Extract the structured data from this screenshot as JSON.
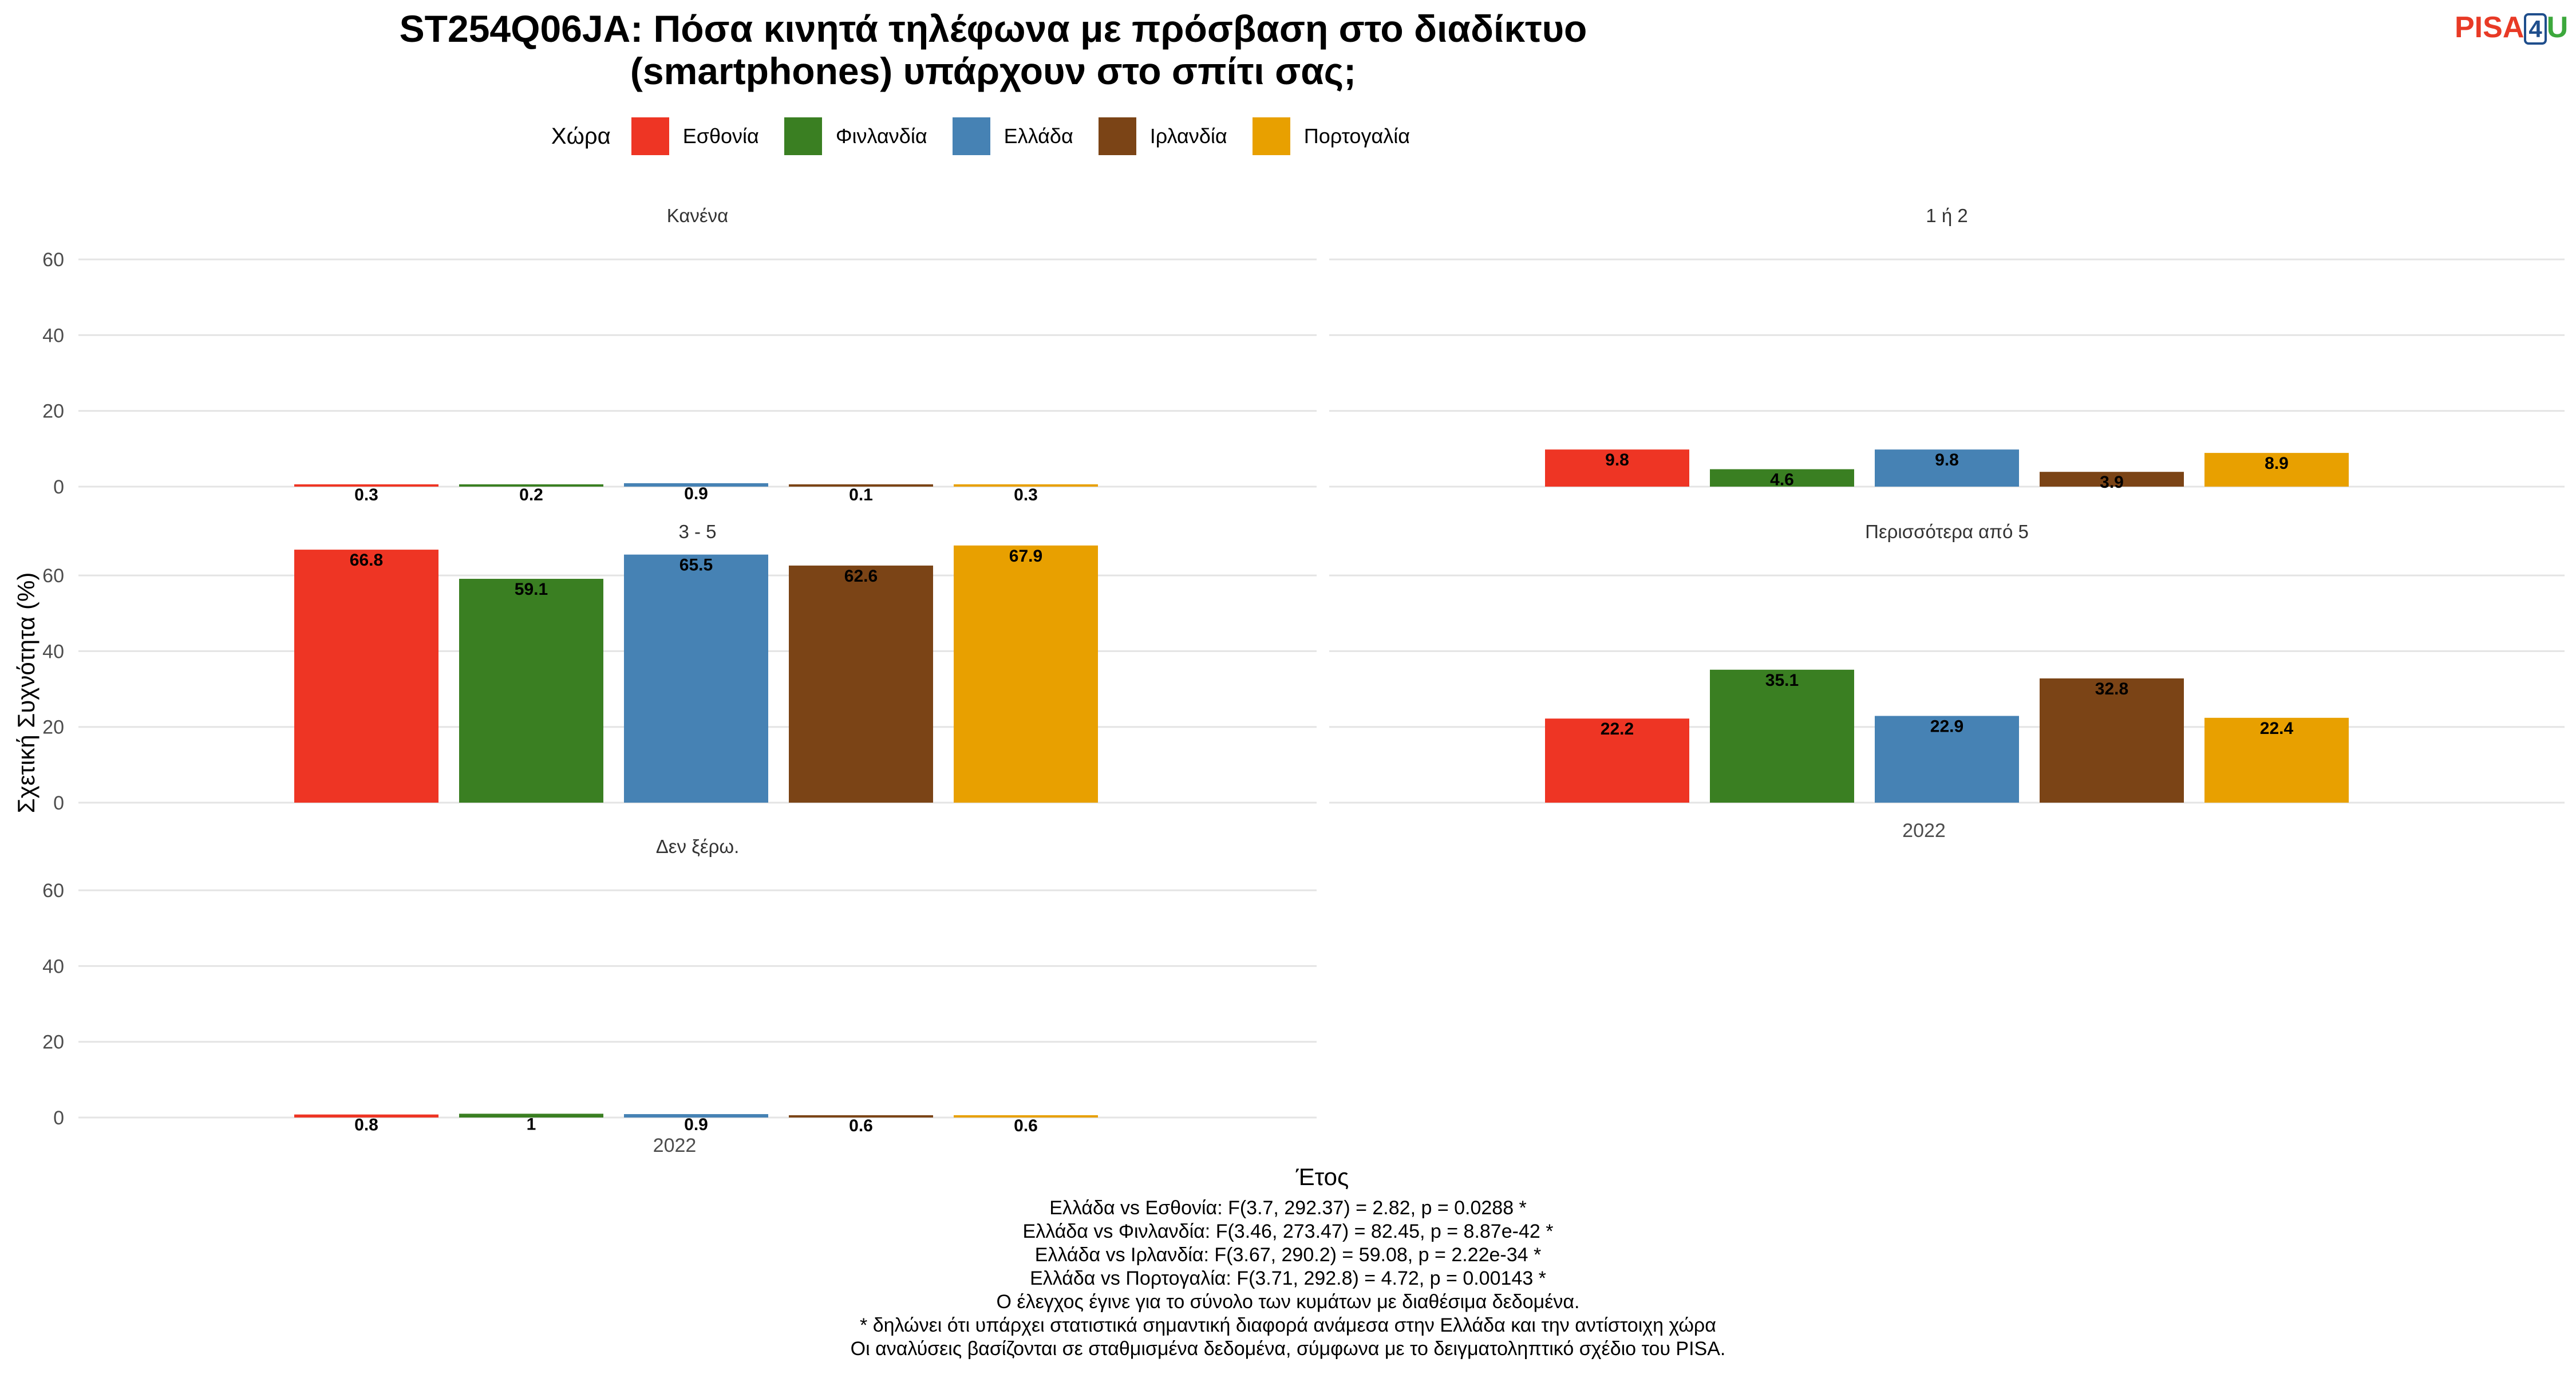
{
  "title_lines": [
    "ST254Q06JA: Πόσα κινητά τηλέφωνα με πρόσβαση στο διαδίκτυο",
    "(smartphones) υπάρχουν στο σπίτι σας;"
  ],
  "logo": {
    "part1": "PISA",
    "part2": "4",
    "part3": "U"
  },
  "legend": {
    "title": "Χώρα",
    "items": [
      {
        "label": "Εσθονία",
        "color": "#EE3524"
      },
      {
        "label": "Φινλανδία",
        "color": "#3A7F22"
      },
      {
        "label": "Ελλάδα",
        "color": "#4682B4"
      },
      {
        "label": "Ιρλανδία",
        "color": "#7B4416"
      },
      {
        "label": "Πορτογαλία",
        "color": "#E8A000"
      }
    ]
  },
  "chart_data": {
    "type": "bar",
    "ylabel": "Σχετική Συχνότητα (%)",
    "xlabel": "Έτος",
    "ylim": [
      0,
      65
    ],
    "yticks": [
      0,
      20,
      40,
      60
    ],
    "grid": true,
    "legend_position": "top",
    "categories": [
      "2022"
    ],
    "series_names": [
      "Εσθονία",
      "Φινλανδία",
      "Ελλάδα",
      "Ιρλανδία",
      "Πορτογαλία"
    ],
    "facets": [
      {
        "title": "Κανένα",
        "values": [
          0.3,
          0.2,
          0.9,
          0.1,
          0.3
        ],
        "labels": [
          "0.3",
          "0.2",
          "0.9",
          "0.1",
          "0.3"
        ]
      },
      {
        "title": "1 ή 2",
        "values": [
          9.8,
          4.6,
          9.8,
          3.9,
          8.9
        ],
        "labels": [
          "9.8",
          "4.6",
          "9.8",
          "3.9",
          "8.9"
        ]
      },
      {
        "title": "3 - 5",
        "values": [
          66.8,
          59.1,
          65.5,
          62.6,
          67.9
        ],
        "labels": [
          "66.8",
          "59.1",
          "65.5",
          "62.6",
          "67.9"
        ]
      },
      {
        "title": "Περισσότερα από 5",
        "values": [
          22.2,
          35.1,
          22.9,
          32.8,
          22.4
        ],
        "labels": [
          "22.2",
          "35.1",
          "22.9",
          "32.8",
          "22.4"
        ]
      },
      {
        "title": "Δεν ξέρω.",
        "values": [
          0.8,
          1.0,
          0.9,
          0.6,
          0.6
        ],
        "labels": [
          "0.8",
          "1",
          "0.9",
          "0.6",
          "0.6"
        ]
      }
    ]
  },
  "notes": [
    "Ελλάδα vs Εσθονία: F(3.7, 292.37) = 2.82, p = 0.0288 *",
    "Ελλάδα vs Φινλανδία: F(3.46, 273.47) = 82.45, p = 8.87e-42 *",
    "Ελλάδα vs Ιρλανδία: F(3.67, 290.2) = 59.08, p = 2.22e-34 *",
    "Ελλάδα vs Πορτογαλία: F(3.71, 292.8) = 4.72, p = 0.00143 *",
    "Ο έλεγχος έγινε για το σύνολο των κυμάτων με διαθέσιμα δεδομένα.",
    "* δηλώνει ότι υπάρχει στατιστικά σημαντική διαφορά ανάμεσα στην Ελλάδα και την αντίστοιχη χώρα",
    "Οι αναλύσεις βασίζονται σε σταθμισμένα δεδομένα, σύμφωνα με το δειγματοληπτικό σχέδιο του PISA."
  ]
}
